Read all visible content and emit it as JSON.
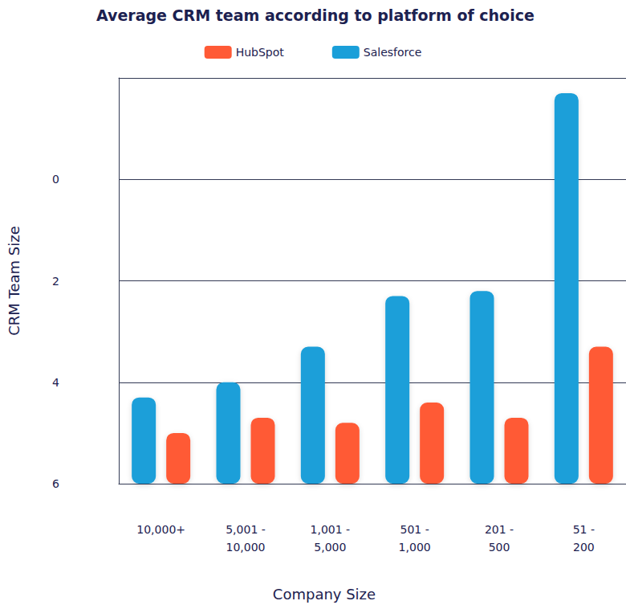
{
  "chart_data": {
    "type": "bar",
    "title": "Average CRM team according to platform of choice",
    "x_label": "Company Size",
    "y_label": "CRM Team Size",
    "categories": [
      "10,000+",
      "5,001 - 10,000",
      "1,001 - 5,000",
      "501 - 1,000",
      "201 - 500",
      "51 - 200"
    ],
    "series": [
      {
        "name": "HubSpot",
        "color": "#ff5a36",
        "values": [
          5.0,
          4.7,
          4.8,
          4.4,
          4.7,
          3.3
        ]
      },
      {
        "name": "Salesforce",
        "color": "#1a9fd9",
        "values": [
          4.3,
          4.0,
          3.3,
          2.3,
          2.2,
          -1.7
        ]
      }
    ],
    "ylim": [
      -2,
      6
    ],
    "yticks": [
      0,
      2,
      4,
      6
    ],
    "grid": true,
    "legend": "top"
  }
}
